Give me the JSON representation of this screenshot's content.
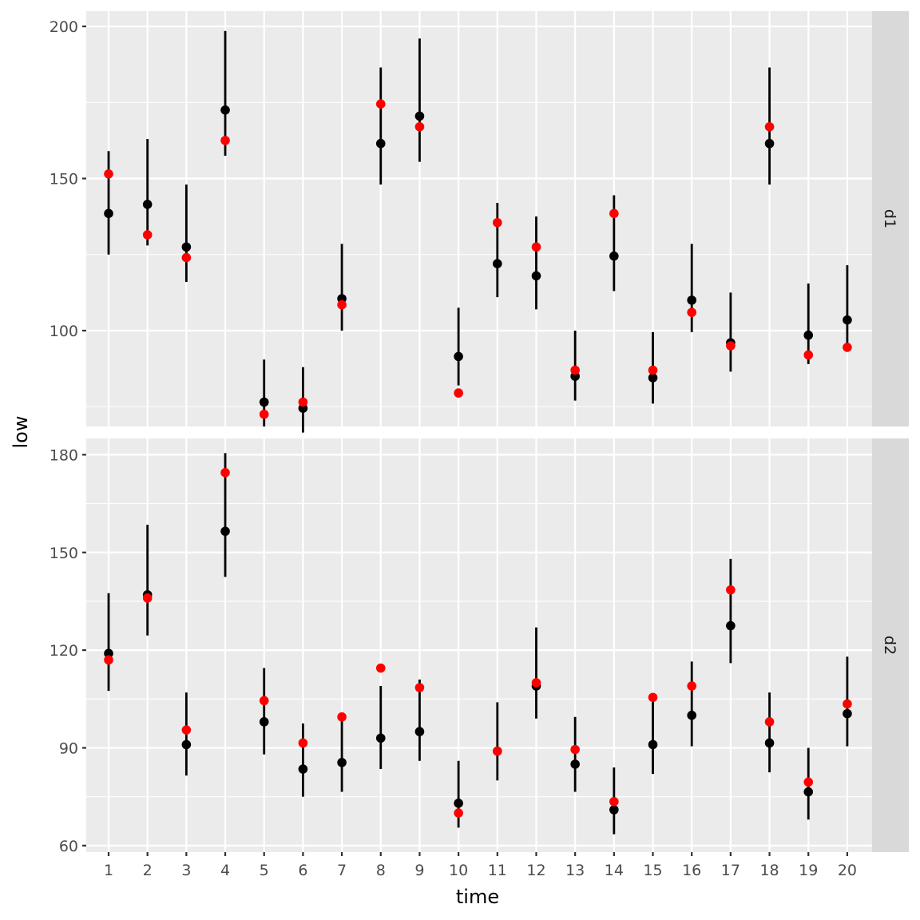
{
  "chart_data": {
    "type": "scatter",
    "subtype": "faceted point-range with overlay points",
    "xlabel": "time",
    "ylabel": "low",
    "x_categories": [
      "1",
      "2",
      "3",
      "4",
      "5",
      "6",
      "7",
      "8",
      "9",
      "10",
      "11",
      "12",
      "13",
      "14",
      "15",
      "16",
      "17",
      "18",
      "19",
      "20"
    ],
    "colors": {
      "panel_bg": "#EBEBEB",
      "strip_bg": "#D9D9D9",
      "grid": "#FFFFFF",
      "range": "#000000",
      "estimate": "#000000",
      "observed": "#FF0000"
    },
    "facets": [
      {
        "label": "d1",
        "ylim": [
          68.5,
          205
        ],
        "y_ticks": [
          100,
          150,
          200
        ],
        "y_tick_labels": [
          "100",
          "150",
          "200"
        ],
        "y_minor": [
          75,
          125,
          175
        ],
        "series": [
          {
            "name": "estimate",
            "color": "#000000",
            "values": [
              138.5,
              141.5,
              127.5,
              172.5,
              76.5,
              74.5,
              110.5,
              161.5,
              170.5,
              91.5,
              122,
              118,
              85,
              124.5,
              84.5,
              110,
              96,
              161.5,
              98.5,
              103.5
            ]
          },
          {
            "name": "lower",
            "color": "#000000",
            "values": [
              125,
              128,
              116,
              157.5,
              68.5,
              66.5,
              100,
              148,
              155.5,
              82,
              111,
              107,
              77,
              113,
              76,
              99.5,
              86.5,
              148,
              89,
              95
            ]
          },
          {
            "name": "upper",
            "color": "#000000",
            "values": [
              159,
              163,
              148,
              198.5,
              90.5,
              88,
              128.5,
              186.5,
              196,
              107.5,
              142,
              137.5,
              100,
              144.5,
              99.5,
              128.5,
              112.5,
              186.5,
              115.5,
              121.5
            ]
          },
          {
            "name": "observed",
            "color": "#FF0000",
            "values": [
              151.5,
              131.5,
              124,
              162.5,
              72.5,
              76.5,
              108.5,
              174.5,
              167,
              79.5,
              135.5,
              127.5,
              87,
              138.5,
              87,
              106,
              95,
              167,
              92,
              94.5
            ]
          }
        ]
      },
      {
        "label": "d2",
        "ylim": [
          58,
          185
        ],
        "y_ticks": [
          60,
          90,
          120,
          150,
          180
        ],
        "y_tick_labels": [
          "60",
          "90",
          "120",
          "150",
          "180"
        ],
        "y_minor": [
          75,
          105,
          135,
          165
        ],
        "series": [
          {
            "name": "estimate",
            "color": "#000000",
            "values": [
              119,
              137,
              91,
              156.5,
              98,
              83.5,
              85.5,
              93,
              95,
              73,
              89,
              109,
              85,
              71,
              91,
              100,
              127.5,
              91.5,
              76.5,
              100.5
            ]
          },
          {
            "name": "lower",
            "color": "#000000",
            "values": [
              107.5,
              124.5,
              81.5,
              142.5,
              88,
              75,
              76.5,
              83.5,
              86,
              65.5,
              80,
              99,
              76.5,
              63.5,
              82,
              90.5,
              116,
              82.5,
              68,
              90.5
            ]
          },
          {
            "name": "upper",
            "color": "#000000",
            "values": [
              137.5,
              158.5,
              107,
              180.5,
              114.5,
              97.5,
              99.5,
              109,
              111,
              86,
              104,
              127,
              99.5,
              84,
              105,
              116.5,
              148,
              107,
              90,
              118
            ]
          },
          {
            "name": "observed",
            "color": "#FF0000",
            "values": [
              117,
              136,
              95.5,
              174.5,
              104.5,
              91.5,
              99.5,
              114.5,
              108.5,
              70,
              89,
              110,
              89.5,
              73.5,
              105.5,
              109,
              138.5,
              98,
              79.5,
              103.5
            ]
          }
        ]
      }
    ]
  }
}
